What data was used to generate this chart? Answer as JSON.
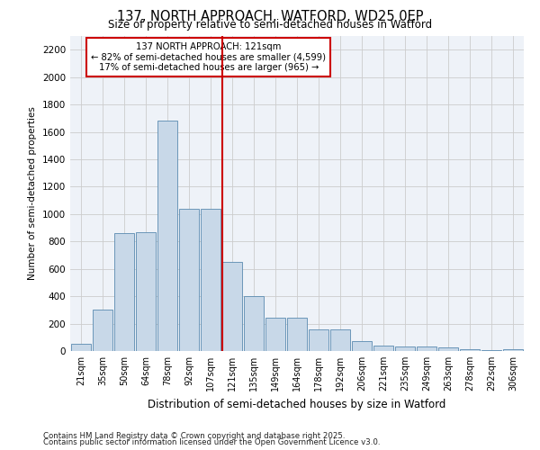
{
  "title_line1": "137, NORTH APPROACH, WATFORD, WD25 0EP",
  "title_line2": "Size of property relative to semi-detached houses in Watford",
  "xlabel": "Distribution of semi-detached houses by size in Watford",
  "ylabel": "Number of semi-detached properties",
  "annotation_line1": "137 NORTH APPROACH: 121sqm",
  "annotation_line2": "← 82% of semi-detached houses are smaller (4,599)",
  "annotation_line3": "17% of semi-detached houses are larger (965) →",
  "footer_line1": "Contains HM Land Registry data © Crown copyright and database right 2025.",
  "footer_line2": "Contains public sector information licensed under the Open Government Licence v3.0.",
  "bar_labels": [
    "21sqm",
    "35sqm",
    "50sqm",
    "64sqm",
    "78sqm",
    "92sqm",
    "107sqm",
    "121sqm",
    "135sqm",
    "149sqm",
    "164sqm",
    "178sqm",
    "192sqm",
    "206sqm",
    "221sqm",
    "235sqm",
    "249sqm",
    "263sqm",
    "278sqm",
    "292sqm",
    "306sqm"
  ],
  "bar_values": [
    50,
    300,
    860,
    870,
    1680,
    1040,
    1040,
    650,
    400,
    240,
    240,
    155,
    155,
    75,
    40,
    30,
    30,
    25,
    15,
    5,
    10
  ],
  "bar_color": "#c8d8e8",
  "bar_edge_color": "#5a8ab0",
  "vline_index": 7,
  "vline_color": "#cc0000",
  "ylim": [
    0,
    2300
  ],
  "yticks": [
    0,
    200,
    400,
    600,
    800,
    1000,
    1200,
    1400,
    1600,
    1800,
    2000,
    2200
  ],
  "grid_color": "#cccccc",
  "background_color": "#eef2f8",
  "annotation_box_color": "#ffffff",
  "annotation_box_edge": "#cc0000"
}
